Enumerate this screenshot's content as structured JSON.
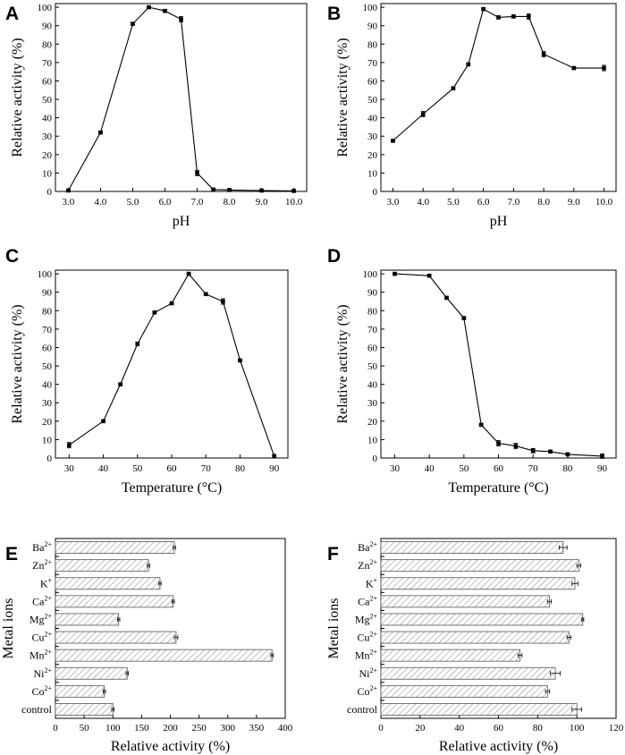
{
  "chart_data": [
    {
      "panel": "A",
      "type": "line",
      "x": [
        3.0,
        4.0,
        5.0,
        5.5,
        6.0,
        6.5,
        7.0,
        7.5,
        8.0,
        9.0,
        10.0
      ],
      "values": [
        0.5,
        32,
        91,
        100,
        98,
        93.5,
        10,
        1,
        0.8,
        0.5,
        0.3
      ],
      "errors": [
        0.3,
        0.5,
        0.5,
        0.5,
        0.8,
        1.5,
        1.5,
        0.8,
        0.3,
        0.3,
        0.3
      ],
      "xticks": [
        "3.0",
        "4.0",
        "5.0",
        "6.0",
        "7.0",
        "8.0",
        "9.0",
        "10.0"
      ],
      "xlim": [
        2.6,
        10.4
      ],
      "ylim": [
        0,
        102
      ],
      "yticks": [
        "0",
        "10",
        "20",
        "30",
        "40",
        "50",
        "60",
        "70",
        "80",
        "90",
        "100"
      ],
      "xlabel": "pH",
      "ylabel": "Relative activity (%)"
    },
    {
      "panel": "B",
      "type": "line",
      "x": [
        3.0,
        4.0,
        5.0,
        5.5,
        6.0,
        6.5,
        7.0,
        7.5,
        8.0,
        9.0,
        10.0
      ],
      "values": [
        27.5,
        42,
        56,
        69,
        99,
        94.5,
        95,
        95,
        74.5,
        67,
        67
      ],
      "errors": [
        0.5,
        1.5,
        0.5,
        0.5,
        0.5,
        0.8,
        0.8,
        1.5,
        1.5,
        0.5,
        1.5
      ],
      "xticks": [
        "3.0",
        "4.0",
        "5.0",
        "6.0",
        "7.0",
        "8.0",
        "9.0",
        "10.0"
      ],
      "xlim": [
        2.6,
        10.4
      ],
      "ylim": [
        0,
        102
      ],
      "yticks": [
        "0",
        "10",
        "20",
        "30",
        "40",
        "50",
        "60",
        "70",
        "80",
        "90",
        "100"
      ],
      "xlabel": "pH",
      "ylabel": "Relative activity (%)"
    },
    {
      "panel": "C",
      "type": "line",
      "x": [
        30,
        40,
        45,
        50,
        55,
        60,
        65,
        70,
        75,
        80,
        90
      ],
      "values": [
        7,
        20,
        40,
        62,
        79,
        84,
        100,
        89,
        85,
        53,
        1
      ],
      "errors": [
        1.5,
        0.5,
        0.5,
        1,
        0.5,
        0.5,
        0.5,
        0.5,
        1.5,
        0.5,
        1
      ],
      "xticks": [
        "30",
        "40",
        "50",
        "60",
        "70",
        "80",
        "90"
      ],
      "xlim": [
        26,
        94
      ],
      "ylim": [
        0,
        102
      ],
      "yticks": [
        "0",
        "10",
        "20",
        "30",
        "40",
        "50",
        "60",
        "70",
        "80",
        "90",
        "100"
      ],
      "xlabel": "Temperature (°C)",
      "ylabel": "Relative activity (%)"
    },
    {
      "panel": "D",
      "type": "line",
      "x": [
        30,
        40,
        45,
        50,
        55,
        60,
        65,
        70,
        75,
        80,
        90
      ],
      "values": [
        100,
        99,
        87,
        76,
        18,
        8,
        6.5,
        4,
        3.5,
        2,
        1
      ],
      "errors": [
        0.3,
        0.5,
        0.5,
        0.5,
        0.5,
        1.5,
        1.5,
        1.2,
        0.5,
        0.5,
        1.2
      ],
      "xticks": [
        "30",
        "40",
        "50",
        "60",
        "70",
        "80",
        "90"
      ],
      "xlim": [
        26,
        94
      ],
      "ylim": [
        0,
        102
      ],
      "yticks": [
        "0",
        "10",
        "20",
        "30",
        "40",
        "50",
        "60",
        "70",
        "80",
        "90",
        "100"
      ],
      "xlabel": "Temperature (°C)",
      "ylabel": "Relative activity (%)"
    },
    {
      "panel": "E",
      "type": "bar",
      "orientation": "horizontal",
      "categories": [
        {
          "base": "Ba",
          "sup": "2+"
        },
        {
          "base": "Zn",
          "sup": "2+"
        },
        {
          "base": "K",
          "sup": "+"
        },
        {
          "base": "Ca",
          "sup": "2+"
        },
        {
          "base": "Mg",
          "sup": "2+"
        },
        {
          "base": "Cu",
          "sup": "2+"
        },
        {
          "base": "Mn",
          "sup": "2+"
        },
        {
          "base": "Ni",
          "sup": "2+"
        },
        {
          "base": "Co",
          "sup": "2+"
        },
        {
          "base": "control",
          "sup": ""
        }
      ],
      "values": [
        207,
        162,
        182,
        205,
        110,
        210,
        377,
        125,
        85,
        100
      ],
      "errors": [
        2,
        2,
        2,
        2,
        2,
        3,
        2,
        2,
        2,
        2
      ],
      "xticks": [
        "0",
        "50",
        "100",
        "150",
        "200",
        "250",
        "300",
        "350",
        "400"
      ],
      "xlim": [
        0,
        400
      ],
      "xlabel": "Relative activity (%)",
      "ylabel": "Metal ions"
    },
    {
      "panel": "F",
      "type": "bar",
      "orientation": "horizontal",
      "categories": [
        {
          "base": "Ba",
          "sup": "2+"
        },
        {
          "base": "Zn",
          "sup": "2+"
        },
        {
          "base": "K",
          "sup": "+"
        },
        {
          "base": "Ca",
          "sup": "2+"
        },
        {
          "base": "Mg",
          "sup": "2+"
        },
        {
          "base": "Cu",
          "sup": "2+"
        },
        {
          "base": "Mn",
          "sup": "2+"
        },
        {
          "base": "Ni",
          "sup": "2+"
        },
        {
          "base": "Co",
          "sup": "2+"
        },
        {
          "base": "control",
          "sup": ""
        }
      ],
      "values": [
        93,
        101,
        99,
        86,
        103,
        96,
        71,
        89,
        85,
        100
      ],
      "errors": [
        2,
        1,
        1.5,
        1,
        0.5,
        1,
        1,
        2.5,
        1,
        2.5
      ],
      "xticks": [
        "0",
        "20",
        "40",
        "60",
        "80",
        "100",
        "120"
      ],
      "xlim": [
        0,
        120
      ],
      "xlabel": "Relative activity (%)",
      "ylabel": "Metal ions"
    }
  ]
}
